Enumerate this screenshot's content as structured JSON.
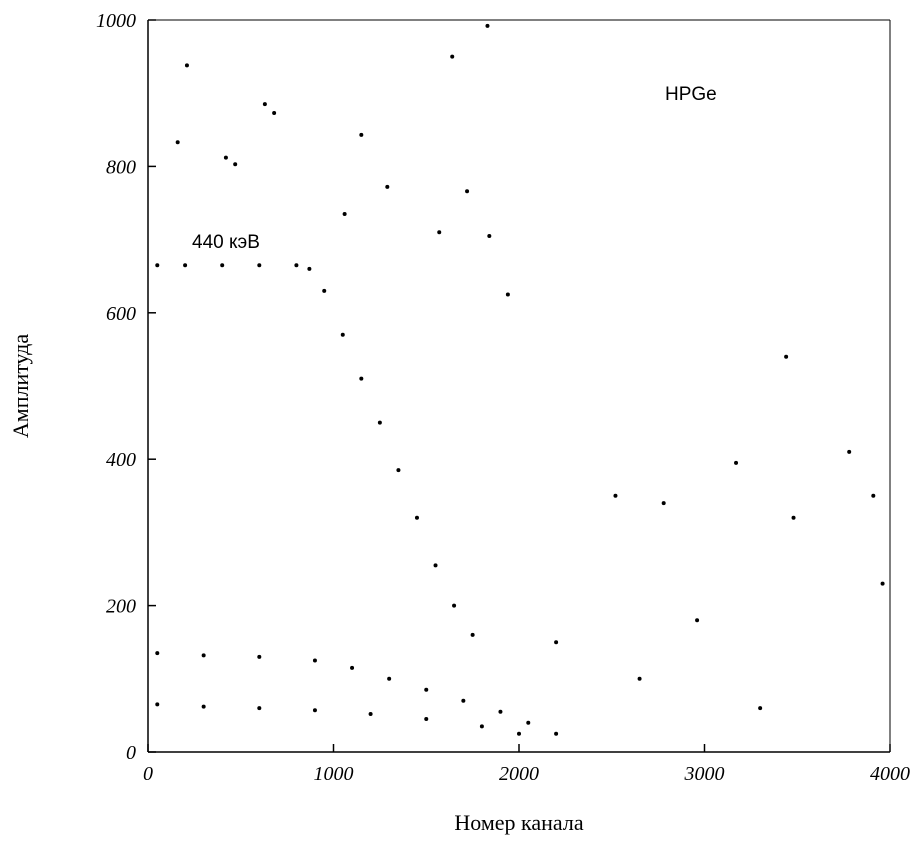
{
  "chart_data": {
    "type": "scatter",
    "title": "",
    "xlabel": "Номер канала",
    "ylabel": "Амплитуда",
    "xlim": [
      0,
      4000
    ],
    "ylim": [
      0,
      1000
    ],
    "x_ticks": [
      0,
      1000,
      2000,
      3000,
      4000
    ],
    "y_ticks": [
      0,
      200,
      400,
      600,
      800,
      1000
    ],
    "grid": false,
    "legend": "none",
    "marker_color": "#000000",
    "annotations": [
      "HPGe",
      "440 кэВ"
    ],
    "series": [
      {
        "description_ref": "440 keV line",
        "x": [
          50,
          200,
          400,
          600,
          800,
          870,
          950,
          1050,
          1150,
          1250,
          1350,
          1450,
          1550,
          1650,
          1750
        ],
        "y": [
          665,
          665,
          665,
          665,
          665,
          660,
          630,
          570,
          510,
          450,
          385,
          320,
          255,
          200,
          160
        ]
      },
      {
        "description_ref": "band near 130",
        "x": [
          50,
          300,
          600,
          900,
          1100,
          1300,
          1500,
          1700,
          1900,
          2050,
          2200
        ],
        "y": [
          135,
          132,
          130,
          125,
          115,
          100,
          85,
          70,
          55,
          40,
          25
        ]
      },
      {
        "description_ref": "band near 60",
        "x": [
          50,
          300,
          600,
          900,
          1200,
          1500,
          1800,
          2000
        ],
        "y": [
          65,
          62,
          60,
          57,
          52,
          45,
          35,
          25
        ]
      },
      {
        "description_ref": "scattered samples",
        "x": [
          210,
          160,
          630,
          680,
          420,
          470,
          1150,
          1290,
          1640,
          1830,
          1720,
          1840,
          1060,
          1570,
          1940,
          2520,
          2780,
          3170,
          3440,
          3480,
          3780,
          3910,
          3960,
          2200,
          2650,
          2960,
          3300
        ],
        "y": [
          938,
          833,
          885,
          873,
          812,
          803,
          843,
          772,
          950,
          992,
          766,
          705,
          735,
          710,
          625,
          350,
          340,
          395,
          540,
          320,
          410,
          350,
          230,
          150,
          100,
          180,
          60
        ]
      }
    ]
  }
}
